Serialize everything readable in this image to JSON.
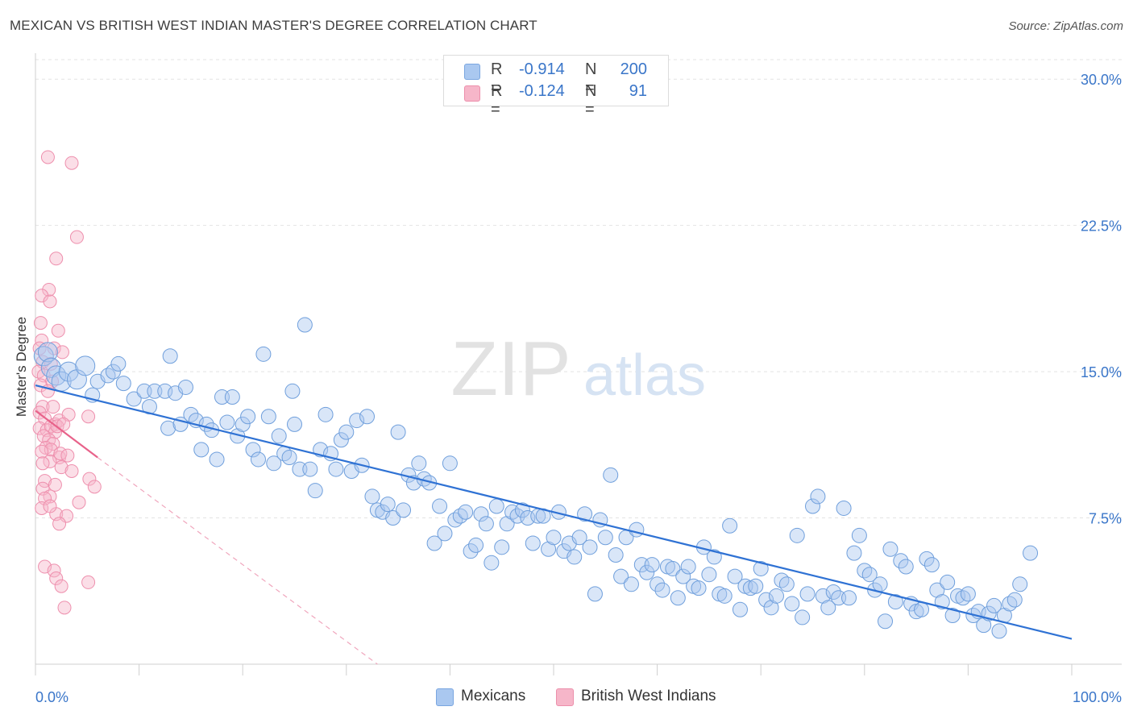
{
  "title": "MEXICAN VS BRITISH WEST INDIAN MASTER'S DEGREE CORRELATION CHART",
  "source": "Source: ZipAtlas.com",
  "watermark": {
    "zip": "ZIP",
    "atlas": "atlas"
  },
  "legend": {
    "rows": [
      {
        "r_label": "R =",
        "r_value": "-0.914",
        "n_label": "N =",
        "n_value": "200",
        "color": "#aac8f0"
      },
      {
        "r_label": "R =",
        "r_value": "-0.124",
        "n_label": "N =",
        "n_value": "91",
        "color": "#f6b6c9"
      }
    ]
  },
  "bottom_legend": [
    {
      "label": "Mexicans",
      "color": "#aac8f0"
    },
    {
      "label": "British West Indians",
      "color": "#f6b6c9"
    }
  ],
  "chart_data": {
    "type": "scatter",
    "xlabel": "",
    "ylabel": "Master's Degree",
    "xlim": [
      0,
      100
    ],
    "ylim": [
      0,
      31
    ],
    "x_tick_labels": [
      "0.0%",
      "100.0%"
    ],
    "y_ticks": [
      7.5,
      15.0,
      22.5,
      30.0
    ],
    "y_tick_labels": [
      "7.5%",
      "15.0%",
      "22.5%",
      "30.0%"
    ],
    "grid": true,
    "legend_position": "top-center",
    "colors": {
      "mexicans": "#aac8f0",
      "mexicans_line": "#2f72d4",
      "bwi": "#f6b6c9",
      "bwi_line": "#e8628a",
      "tick_label": "#3a76c9"
    },
    "series": [
      {
        "name": "Mexicans",
        "trend": {
          "x0": 0,
          "y0": 14.3,
          "x1": 100,
          "y1": 1.3
        },
        "points": [
          [
            0.8,
            15.8
          ],
          [
            1.2,
            16.0
          ],
          [
            1.5,
            15.2
          ],
          [
            2.0,
            14.8
          ],
          [
            2.5,
            14.5
          ],
          [
            3.2,
            15.0
          ],
          [
            4.0,
            14.6
          ],
          [
            4.8,
            15.3
          ],
          [
            5.5,
            13.8
          ],
          [
            6.0,
            14.5
          ],
          [
            7.0,
            14.8
          ],
          [
            7.5,
            15.0
          ],
          [
            8.0,
            15.4
          ],
          [
            8.5,
            14.4
          ],
          [
            9.5,
            13.6
          ],
          [
            10.5,
            14.0
          ],
          [
            11.0,
            13.2
          ],
          [
            11.5,
            14.0
          ],
          [
            12.5,
            14.0
          ],
          [
            12.8,
            12.1
          ],
          [
            13.0,
            15.8
          ],
          [
            13.5,
            13.9
          ],
          [
            14.0,
            12.3
          ],
          [
            14.5,
            14.2
          ],
          [
            15.0,
            12.8
          ],
          [
            15.5,
            12.5
          ],
          [
            16.0,
            11.0
          ],
          [
            16.5,
            12.3
          ],
          [
            17.0,
            12.0
          ],
          [
            17.5,
            10.5
          ],
          [
            18.0,
            13.7
          ],
          [
            18.5,
            12.4
          ],
          [
            19.0,
            13.7
          ],
          [
            19.5,
            11.7
          ],
          [
            20.0,
            12.3
          ],
          [
            20.5,
            12.7
          ],
          [
            21.0,
            11.0
          ],
          [
            21.5,
            10.5
          ],
          [
            22.0,
            15.9
          ],
          [
            22.5,
            12.7
          ],
          [
            23.0,
            10.3
          ],
          [
            23.5,
            11.7
          ],
          [
            24.0,
            10.8
          ],
          [
            24.5,
            10.6
          ],
          [
            24.8,
            14.0
          ],
          [
            25.0,
            12.3
          ],
          [
            25.5,
            10.0
          ],
          [
            26.0,
            17.4
          ],
          [
            26.5,
            10.0
          ],
          [
            27.0,
            8.9
          ],
          [
            27.5,
            11.0
          ],
          [
            28.0,
            12.8
          ],
          [
            28.5,
            10.8
          ],
          [
            29.0,
            10.0
          ],
          [
            29.5,
            11.5
          ],
          [
            30.0,
            11.9
          ],
          [
            30.5,
            9.9
          ],
          [
            31.0,
            12.5
          ],
          [
            31.5,
            10.2
          ],
          [
            32.0,
            12.7
          ],
          [
            32.5,
            8.6
          ],
          [
            33.0,
            7.9
          ],
          [
            33.5,
            7.8
          ],
          [
            34.0,
            8.2
          ],
          [
            34.5,
            7.5
          ],
          [
            35.0,
            11.9
          ],
          [
            35.5,
            7.9
          ],
          [
            36.0,
            9.7
          ],
          [
            36.5,
            9.3
          ],
          [
            37.0,
            10.3
          ],
          [
            37.5,
            9.5
          ],
          [
            38.0,
            9.3
          ],
          [
            38.5,
            6.2
          ],
          [
            39.0,
            8.1
          ],
          [
            39.5,
            6.7
          ],
          [
            40.0,
            10.3
          ],
          [
            40.5,
            7.4
          ],
          [
            41.0,
            7.6
          ],
          [
            41.5,
            7.8
          ],
          [
            42.0,
            5.8
          ],
          [
            42.5,
            6.1
          ],
          [
            43.0,
            7.7
          ],
          [
            43.5,
            7.2
          ],
          [
            44.0,
            5.2
          ],
          [
            44.5,
            8.1
          ],
          [
            45.0,
            6.0
          ],
          [
            45.5,
            7.2
          ],
          [
            46.0,
            7.8
          ],
          [
            46.5,
            7.6
          ],
          [
            47.0,
            7.9
          ],
          [
            47.5,
            7.5
          ],
          [
            48.0,
            6.2
          ],
          [
            48.5,
            7.6
          ],
          [
            49.0,
            7.6
          ],
          [
            49.5,
            5.9
          ],
          [
            50.0,
            6.5
          ],
          [
            50.5,
            7.8
          ],
          [
            51.0,
            5.8
          ],
          [
            51.5,
            6.2
          ],
          [
            52.0,
            5.5
          ],
          [
            52.5,
            6.5
          ],
          [
            53.0,
            7.7
          ],
          [
            53.5,
            6.0
          ],
          [
            54.0,
            3.6
          ],
          [
            54.5,
            7.4
          ],
          [
            55.0,
            6.5
          ],
          [
            55.5,
            9.7
          ],
          [
            56.0,
            5.6
          ],
          [
            56.5,
            4.5
          ],
          [
            57.0,
            6.5
          ],
          [
            57.5,
            4.1
          ],
          [
            58.0,
            6.9
          ],
          [
            58.5,
            5.1
          ],
          [
            59.0,
            4.7
          ],
          [
            59.5,
            5.1
          ],
          [
            60.0,
            4.1
          ],
          [
            60.5,
            3.8
          ],
          [
            61.0,
            5.0
          ],
          [
            61.5,
            4.9
          ],
          [
            62.0,
            3.4
          ],
          [
            62.5,
            4.5
          ],
          [
            63.0,
            5.0
          ],
          [
            63.5,
            4.0
          ],
          [
            64.0,
            3.9
          ],
          [
            64.5,
            6.0
          ],
          [
            65.0,
            4.6
          ],
          [
            65.5,
            5.5
          ],
          [
            66.0,
            3.6
          ],
          [
            66.5,
            3.5
          ],
          [
            67.0,
            7.1
          ],
          [
            67.5,
            4.5
          ],
          [
            68.0,
            2.8
          ],
          [
            68.5,
            4.0
          ],
          [
            69.0,
            3.9
          ],
          [
            69.5,
            4.0
          ],
          [
            70.0,
            4.9
          ],
          [
            70.5,
            3.3
          ],
          [
            71.0,
            2.9
          ],
          [
            71.5,
            3.5
          ],
          [
            72.0,
            4.3
          ],
          [
            72.5,
            4.1
          ],
          [
            73.0,
            3.1
          ],
          [
            73.5,
            6.6
          ],
          [
            74.0,
            2.4
          ],
          [
            74.5,
            3.6
          ],
          [
            75.0,
            8.1
          ],
          [
            75.5,
            8.6
          ],
          [
            76.0,
            3.5
          ],
          [
            76.5,
            2.9
          ],
          [
            77.0,
            3.7
          ],
          [
            77.5,
            3.4
          ],
          [
            78.0,
            8.0
          ],
          [
            78.5,
            3.4
          ],
          [
            79.0,
            5.7
          ],
          [
            79.5,
            6.6
          ],
          [
            80.0,
            4.8
          ],
          [
            80.5,
            4.6
          ],
          [
            81.0,
            3.8
          ],
          [
            81.5,
            4.1
          ],
          [
            82.0,
            2.2
          ],
          [
            82.5,
            5.9
          ],
          [
            83.0,
            3.2
          ],
          [
            83.5,
            5.3
          ],
          [
            84.0,
            5.0
          ],
          [
            84.5,
            3.1
          ],
          [
            85.0,
            2.7
          ],
          [
            85.5,
            2.8
          ],
          [
            86.0,
            5.4
          ],
          [
            86.5,
            5.1
          ],
          [
            87.0,
            3.8
          ],
          [
            87.5,
            3.2
          ],
          [
            88.0,
            4.2
          ],
          [
            88.5,
            2.5
          ],
          [
            89.0,
            3.5
          ],
          [
            89.5,
            3.4
          ],
          [
            90.0,
            3.6
          ],
          [
            90.5,
            2.5
          ],
          [
            91.0,
            2.7
          ],
          [
            91.5,
            2.0
          ],
          [
            92.0,
            2.6
          ],
          [
            92.5,
            3.0
          ],
          [
            93.0,
            1.7
          ],
          [
            93.5,
            2.5
          ],
          [
            94.0,
            3.1
          ],
          [
            94.5,
            3.3
          ],
          [
            95.0,
            4.1
          ],
          [
            96.0,
            5.7
          ]
        ]
      },
      {
        "name": "British West Indians",
        "trend": {
          "x0": 0,
          "y0": 13.0,
          "x1": 6,
          "y1": 10.6
        },
        "trend_extension": {
          "x0": 6,
          "y0": 10.6,
          "x1": 33,
          "y1": 0
        },
        "points": [
          [
            1.2,
            26.0
          ],
          [
            3.5,
            25.7
          ],
          [
            4.0,
            21.9
          ],
          [
            2.0,
            20.8
          ],
          [
            1.3,
            19.2
          ],
          [
            0.6,
            18.9
          ],
          [
            1.4,
            18.6
          ],
          [
            0.5,
            17.5
          ],
          [
            0.6,
            16.6
          ],
          [
            2.2,
            17.1
          ],
          [
            0.4,
            16.2
          ],
          [
            1.8,
            16.2
          ],
          [
            2.6,
            16.0
          ],
          [
            0.7,
            15.5
          ],
          [
            1.5,
            15.4
          ],
          [
            0.3,
            15.0
          ],
          [
            0.8,
            14.8
          ],
          [
            1.6,
            14.5
          ],
          [
            0.5,
            14.3
          ],
          [
            1.2,
            14.0
          ],
          [
            0.7,
            13.2
          ],
          [
            0.4,
            12.9
          ],
          [
            1.7,
            13.2
          ],
          [
            0.9,
            12.6
          ],
          [
            1.9,
            12.3
          ],
          [
            2.3,
            12.5
          ],
          [
            3.2,
            12.8
          ],
          [
            5.1,
            12.7
          ],
          [
            0.4,
            12.1
          ],
          [
            1.1,
            12.0
          ],
          [
            1.5,
            12.2
          ],
          [
            1.9,
            11.9
          ],
          [
            2.1,
            12.2
          ],
          [
            2.7,
            12.3
          ],
          [
            0.8,
            11.7
          ],
          [
            1.3,
            11.5
          ],
          [
            1.7,
            11.3
          ],
          [
            1.0,
            11.1
          ],
          [
            1.5,
            11.0
          ],
          [
            0.6,
            10.9
          ],
          [
            2.3,
            10.6
          ],
          [
            1.4,
            10.4
          ],
          [
            2.4,
            10.8
          ],
          [
            3.1,
            10.7
          ],
          [
            0.7,
            10.3
          ],
          [
            2.5,
            10.1
          ],
          [
            3.5,
            9.9
          ],
          [
            5.2,
            9.5
          ],
          [
            0.9,
            9.4
          ],
          [
            1.9,
            9.2
          ],
          [
            0.7,
            9.0
          ],
          [
            1.4,
            8.6
          ],
          [
            5.7,
            9.1
          ],
          [
            0.9,
            8.5
          ],
          [
            0.6,
            8.0
          ],
          [
            2.0,
            7.7
          ],
          [
            1.4,
            8.1
          ],
          [
            4.2,
            8.3
          ],
          [
            3.0,
            7.6
          ],
          [
            2.3,
            7.2
          ],
          [
            0.9,
            5.0
          ],
          [
            1.8,
            4.8
          ],
          [
            2.0,
            4.4
          ],
          [
            2.5,
            4.0
          ],
          [
            5.1,
            4.2
          ],
          [
            2.8,
            2.9
          ]
        ]
      }
    ]
  }
}
